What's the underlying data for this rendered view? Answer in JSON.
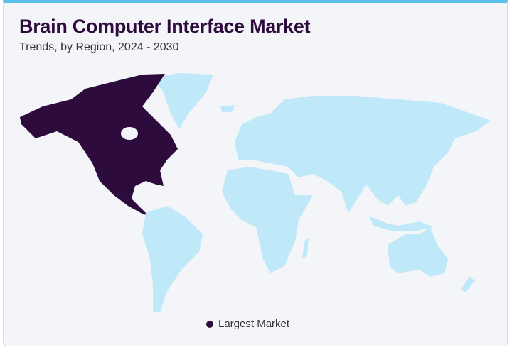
{
  "header": {
    "title": "Brain Computer Interface Market",
    "subtitle": "Trends, by Region, 2024 - 2030"
  },
  "legend": {
    "items": [
      {
        "label": "Largest Market",
        "color": "#2e0b3d"
      }
    ]
  }
}
